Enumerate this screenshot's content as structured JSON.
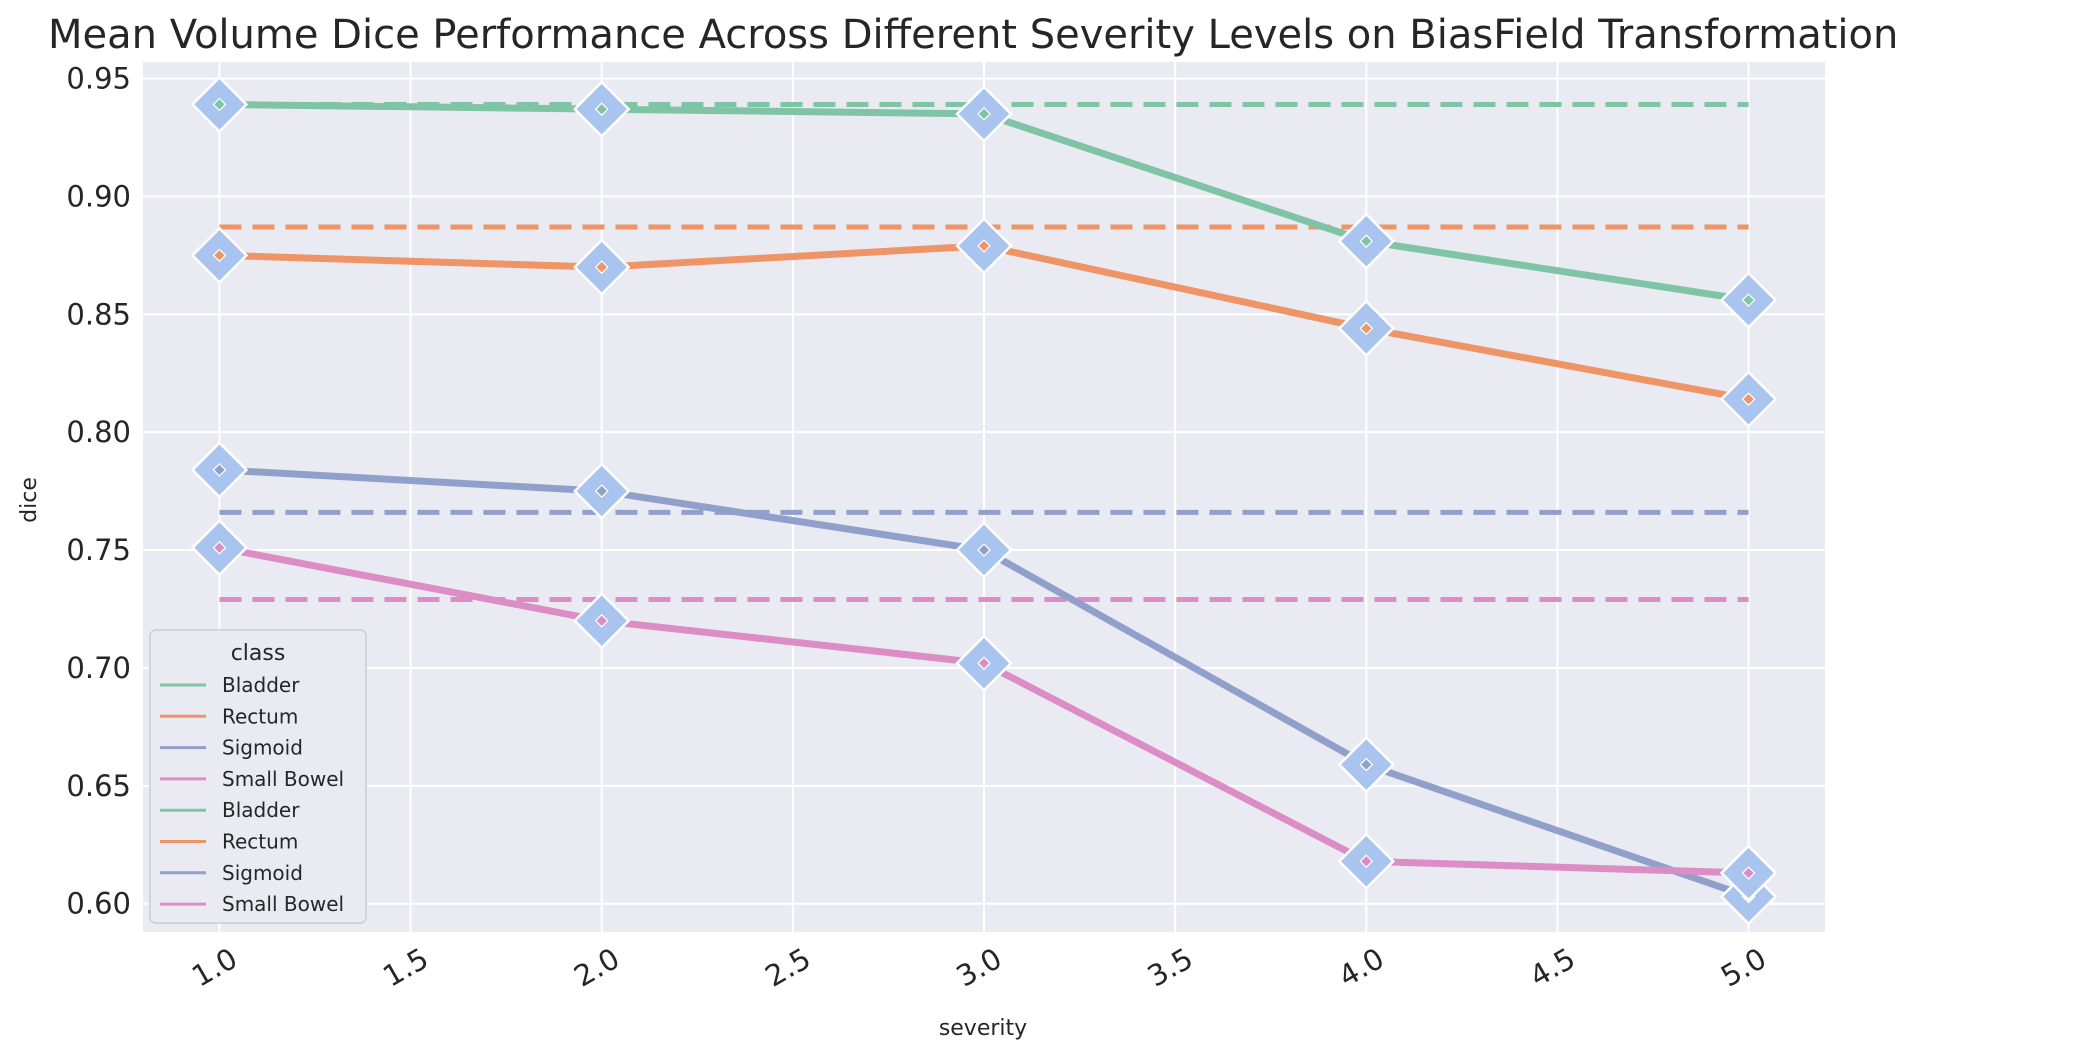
{
  "chart_data": {
    "type": "line",
    "title": "Mean Volume Dice Performance Across Different Severity Levels on BiasField Transformation",
    "xlabel": "severity",
    "ylabel": "dice",
    "x": [
      1.0,
      2.0,
      3.0,
      4.0,
      5.0
    ],
    "xlim": [
      0.8,
      5.2
    ],
    "ylim": [
      0.588,
      0.957
    ],
    "xticks": [
      "1.0",
      "1.5",
      "2.0",
      "2.5",
      "3.0",
      "3.5",
      "4.0",
      "4.5",
      "5.0"
    ],
    "yticks": [
      "0.60",
      "0.65",
      "0.70",
      "0.75",
      "0.80",
      "0.85",
      "0.90",
      "0.95"
    ],
    "grid": true,
    "legend": {
      "title": "class",
      "placement": "lower-left",
      "entries": [
        "Bladder",
        "Rectum",
        "Sigmoid",
        "Small Bowel",
        "Bladder",
        "Rectum",
        "Sigmoid",
        "Small Bowel"
      ]
    },
    "colors": {
      "Bladder": "#7fc4a5",
      "Rectum": "#ee9467",
      "Sigmoid": "#919fcb",
      "Small Bowel": "#dc8dc5",
      "marker": "#a9c5ef",
      "background": "#eaeaf2"
    },
    "series": [
      {
        "name": "Bladder",
        "values": [
          0.939,
          0.937,
          0.935,
          0.881,
          0.856
        ],
        "baseline": 0.939
      },
      {
        "name": "Rectum",
        "values": [
          0.875,
          0.87,
          0.879,
          0.844,
          0.814
        ],
        "baseline": 0.887
      },
      {
        "name": "Sigmoid",
        "values": [
          0.784,
          0.775,
          0.75,
          0.659,
          0.603
        ],
        "baseline": 0.766
      },
      {
        "name": "Small Bowel",
        "values": [
          0.751,
          0.72,
          0.702,
          0.618,
          0.613
        ],
        "baseline": 0.729
      }
    ]
  }
}
